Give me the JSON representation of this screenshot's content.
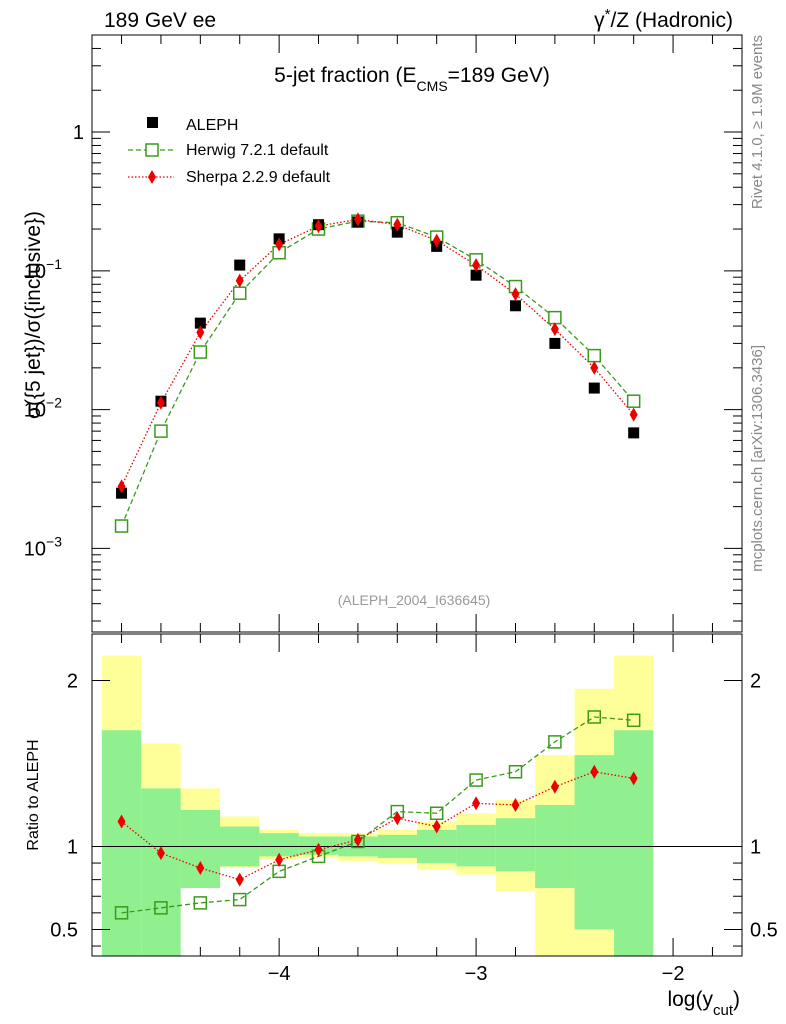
{
  "header": {
    "left": "189 GeV ee",
    "right_prefix": "γ",
    "right_sup": "*",
    "right_suffix": "/Z (Hadronic)"
  },
  "side_text": {
    "rivet": "Rivet 4.1.0, ≥ 1.9M events",
    "mcplots": "mcplots.cern.ch [arXiv:1306.3436]"
  },
  "colors": {
    "data": "#000000",
    "herwig": "#3a9a1a",
    "sherpa": "#ee0000",
    "band_inner": "#90f090",
    "band_outer": "#ffff99"
  },
  "chart_data": [
    {
      "type": "scatter",
      "title": {
        "pre": "5-jet fraction (E",
        "sub": "CMS",
        "post": "=189 GeV)"
      },
      "ylabel": "σ({5 jet})/σ({inclusive})",
      "xlabel": {
        "pre": "log(y",
        "sub": "cut",
        "post": ")"
      },
      "yscale": "log",
      "xlim": [
        -4.95,
        -1.65
      ],
      "ylim": [
        0.00025,
        5
      ],
      "yticks": [
        {
          "v": 0.001,
          "base": "10",
          "exp": "−3"
        },
        {
          "v": 0.01,
          "base": "10",
          "exp": "−2"
        },
        {
          "v": 0.1,
          "base": "10",
          "exp": "−1"
        },
        {
          "v": 1,
          "base": "1",
          "exp": ""
        }
      ],
      "x": [
        -4.8,
        -4.6,
        -4.4,
        -4.2,
        -4.0,
        -3.8,
        -3.6,
        -3.4,
        -3.2,
        -3.0,
        -2.8,
        -2.6,
        -2.4,
        -2.2
      ],
      "series": [
        {
          "name": "ALEPH",
          "values": [
            0.0025,
            0.0115,
            0.042,
            0.11,
            0.17,
            0.215,
            0.225,
            0.19,
            0.15,
            0.093,
            0.056,
            0.03,
            0.0143,
            0.0068
          ]
        },
        {
          "name": "Herwig 7.2.1 default",
          "values": [
            0.00145,
            0.007,
            0.026,
            0.069,
            0.135,
            0.2,
            0.228,
            0.222,
            0.175,
            0.12,
            0.077,
            0.046,
            0.0245,
            0.0115
          ]
        },
        {
          "name": "Sherpa 2.2.9 default",
          "values": [
            0.0028,
            0.0112,
            0.036,
            0.085,
            0.155,
            0.21,
            0.235,
            0.215,
            0.165,
            0.11,
            0.068,
            0.038,
            0.02,
            0.0092
          ]
        }
      ],
      "watermark": "(ALEPH_2004_I636645)"
    },
    {
      "type": "line",
      "ylabel": "Ratio to ALEPH",
      "xlim": [
        -4.95,
        -1.65
      ],
      "ylim": [
        0.34,
        2.28
      ],
      "xticks": [
        {
          "v": -4,
          "label": "−4"
        },
        {
          "v": -3,
          "label": "−3"
        },
        {
          "v": -2,
          "label": "−2"
        }
      ],
      "yticks": [
        {
          "v": 0.5,
          "label": "0.5"
        },
        {
          "v": 1,
          "label": "1"
        },
        {
          "v": 2,
          "label": "2"
        }
      ],
      "x": [
        -4.8,
        -4.6,
        -4.4,
        -4.2,
        -4.0,
        -3.8,
        -3.6,
        -3.4,
        -3.2,
        -3.0,
        -2.8,
        -2.6,
        -2.4,
        -2.2
      ],
      "bin_edges": [
        -4.9,
        -4.7,
        -4.5,
        -4.3,
        -4.1,
        -3.9,
        -3.7,
        -3.5,
        -3.3,
        -3.1,
        -2.9,
        -2.7,
        -2.5,
        -2.3,
        -2.1
      ],
      "band_inner": [
        [
          0.34,
          1.7
        ],
        [
          0.34,
          1.35
        ],
        [
          0.75,
          1.22
        ],
        [
          0.88,
          1.12
        ],
        [
          0.94,
          1.08
        ],
        [
          0.95,
          1.06
        ],
        [
          0.94,
          1.06
        ],
        [
          0.93,
          1.07
        ],
        [
          0.9,
          1.1
        ],
        [
          0.88,
          1.13
        ],
        [
          0.85,
          1.17
        ],
        [
          0.75,
          1.25
        ],
        [
          0.5,
          1.55
        ],
        [
          0.34,
          1.7
        ]
      ],
      "band_outer": [
        [
          0.34,
          2.15
        ],
        [
          0.42,
          1.62
        ],
        [
          0.75,
          1.35
        ],
        [
          0.87,
          1.18
        ],
        [
          0.92,
          1.1
        ],
        [
          0.93,
          1.08
        ],
        [
          0.91,
          1.08
        ],
        [
          0.9,
          1.1
        ],
        [
          0.86,
          1.15
        ],
        [
          0.83,
          1.2
        ],
        [
          0.73,
          1.28
        ],
        [
          0.34,
          1.55
        ],
        [
          0.34,
          1.95
        ],
        [
          0.34,
          2.15
        ]
      ],
      "series": [
        {
          "name": "Herwig 7.2.1 default",
          "values": [
            0.6,
            0.63,
            0.66,
            0.68,
            0.85,
            0.94,
            1.03,
            1.21,
            1.2,
            1.4,
            1.45,
            1.63,
            1.78,
            1.76
          ]
        },
        {
          "name": "Sherpa 2.2.9 default",
          "values": [
            1.15,
            0.96,
            0.87,
            0.8,
            0.92,
            0.98,
            1.04,
            1.17,
            1.12,
            1.26,
            1.25,
            1.36,
            1.45,
            1.41
          ]
        }
      ]
    }
  ]
}
